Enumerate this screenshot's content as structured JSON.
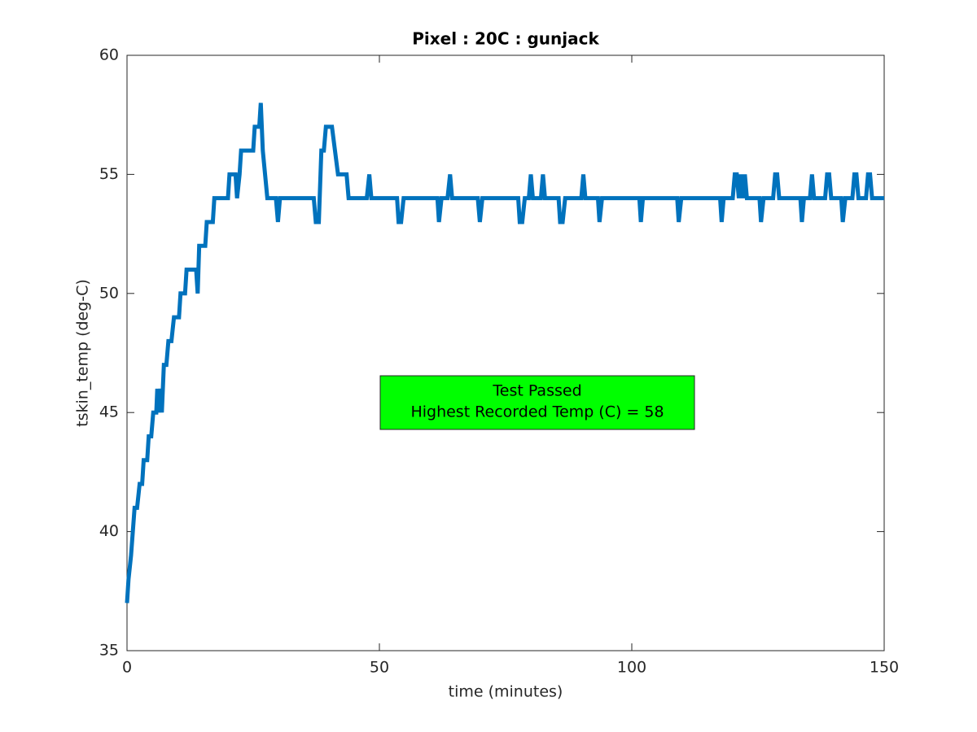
{
  "chart_data": {
    "type": "line",
    "title": "Pixel : 20C : gunjack",
    "xlabel": "time (minutes)",
    "ylabel": "tskin_temp (deg-C)",
    "annotation": [
      "Test Passed",
      "Highest Recorded Temp (C) = 58"
    ],
    "color": "#0072bd",
    "xlim": [
      0,
      150
    ],
    "xticks": [
      0,
      50,
      100,
      150
    ],
    "ylim": [
      35,
      60
    ],
    "yticks": [
      35,
      40,
      45,
      50,
      55,
      60
    ],
    "x": [
      0,
      0.3,
      0.8,
      1.5,
      2,
      2.5,
      3,
      3.3,
      4,
      4.3,
      4.8,
      5.2,
      5.8,
      6,
      6.3,
      6.6,
      6.9,
      7.3,
      7.8,
      8.2,
      8.8,
      9.3,
      10.3,
      10.6,
      11.5,
      11.8,
      13.7,
      14,
      14.3,
      15.5,
      15.8,
      17,
      17.3,
      20,
      20.3,
      21.5,
      21.8,
      22.3,
      22.6,
      25,
      25.3,
      26.2,
      26.5,
      26.9,
      27.8,
      29.5,
      29.9,
      30.3,
      37,
      37.4,
      38,
      38.5,
      39,
      39.4,
      40.6,
      41.8,
      43.5,
      43.9,
      47.5,
      48,
      48.4,
      53.5,
      53.8,
      54.3,
      54.8,
      61.5,
      61.8,
      62.3,
      63.5,
      64,
      64.4,
      69.5,
      69.9,
      70.4,
      77.5,
      77.8,
      78.3,
      78.8,
      79.6,
      80,
      80.4,
      82,
      82.4,
      82.8,
      85.5,
      85.8,
      86.3,
      86.8,
      90,
      90.4,
      90.8,
      93.3,
      93.6,
      94.1,
      101.5,
      101.8,
      102.2,
      109,
      109.3,
      109.8,
      117.5,
      117.8,
      118.2,
      120,
      120.4,
      120.8,
      121.2,
      121.6,
      122,
      122.4,
      122.8,
      125.3,
      125.6,
      126.1,
      128,
      128.4,
      128.8,
      129.2,
      133.4,
      133.7,
      134.1,
      135.3,
      135.7,
      136.1,
      138.3,
      138.7,
      139.1,
      139.5,
      141.5,
      141.8,
      142.3,
      143.7,
      144.1,
      144.5,
      144.9,
      146.4,
      146.8,
      147.2,
      147.6,
      150
    ],
    "values": [
      37,
      38,
      39,
      41,
      41,
      42,
      42,
      43,
      43,
      44,
      44,
      45,
      45,
      46,
      45,
      46,
      45,
      47,
      47,
      48,
      48,
      49,
      49,
      50,
      50,
      51,
      51,
      50,
      52,
      52,
      53,
      53,
      54,
      54,
      55,
      55,
      54,
      55,
      56,
      56,
      57,
      57,
      58,
      56,
      54,
      54,
      53,
      54,
      54,
      53,
      53,
      56,
      56,
      57,
      57,
      55,
      55,
      54,
      54,
      55,
      54,
      54,
      53,
      53,
      54,
      54,
      53,
      54,
      54,
      55,
      54,
      54,
      53,
      54,
      54,
      53,
      53,
      54,
      54,
      55,
      54,
      54,
      55,
      54,
      54,
      53,
      53,
      54,
      54,
      55,
      54,
      54,
      53,
      54,
      54,
      53,
      54,
      54,
      53,
      54,
      54,
      53,
      54,
      54,
      55,
      55,
      54,
      55,
      54,
      55,
      54,
      54,
      53,
      54,
      54,
      55,
      55,
      54,
      54,
      53,
      54,
      54,
      55,
      54,
      54,
      55,
      55,
      54,
      54,
      53,
      54,
      54,
      55,
      55,
      54,
      54,
      55,
      55,
      54,
      54
    ]
  }
}
